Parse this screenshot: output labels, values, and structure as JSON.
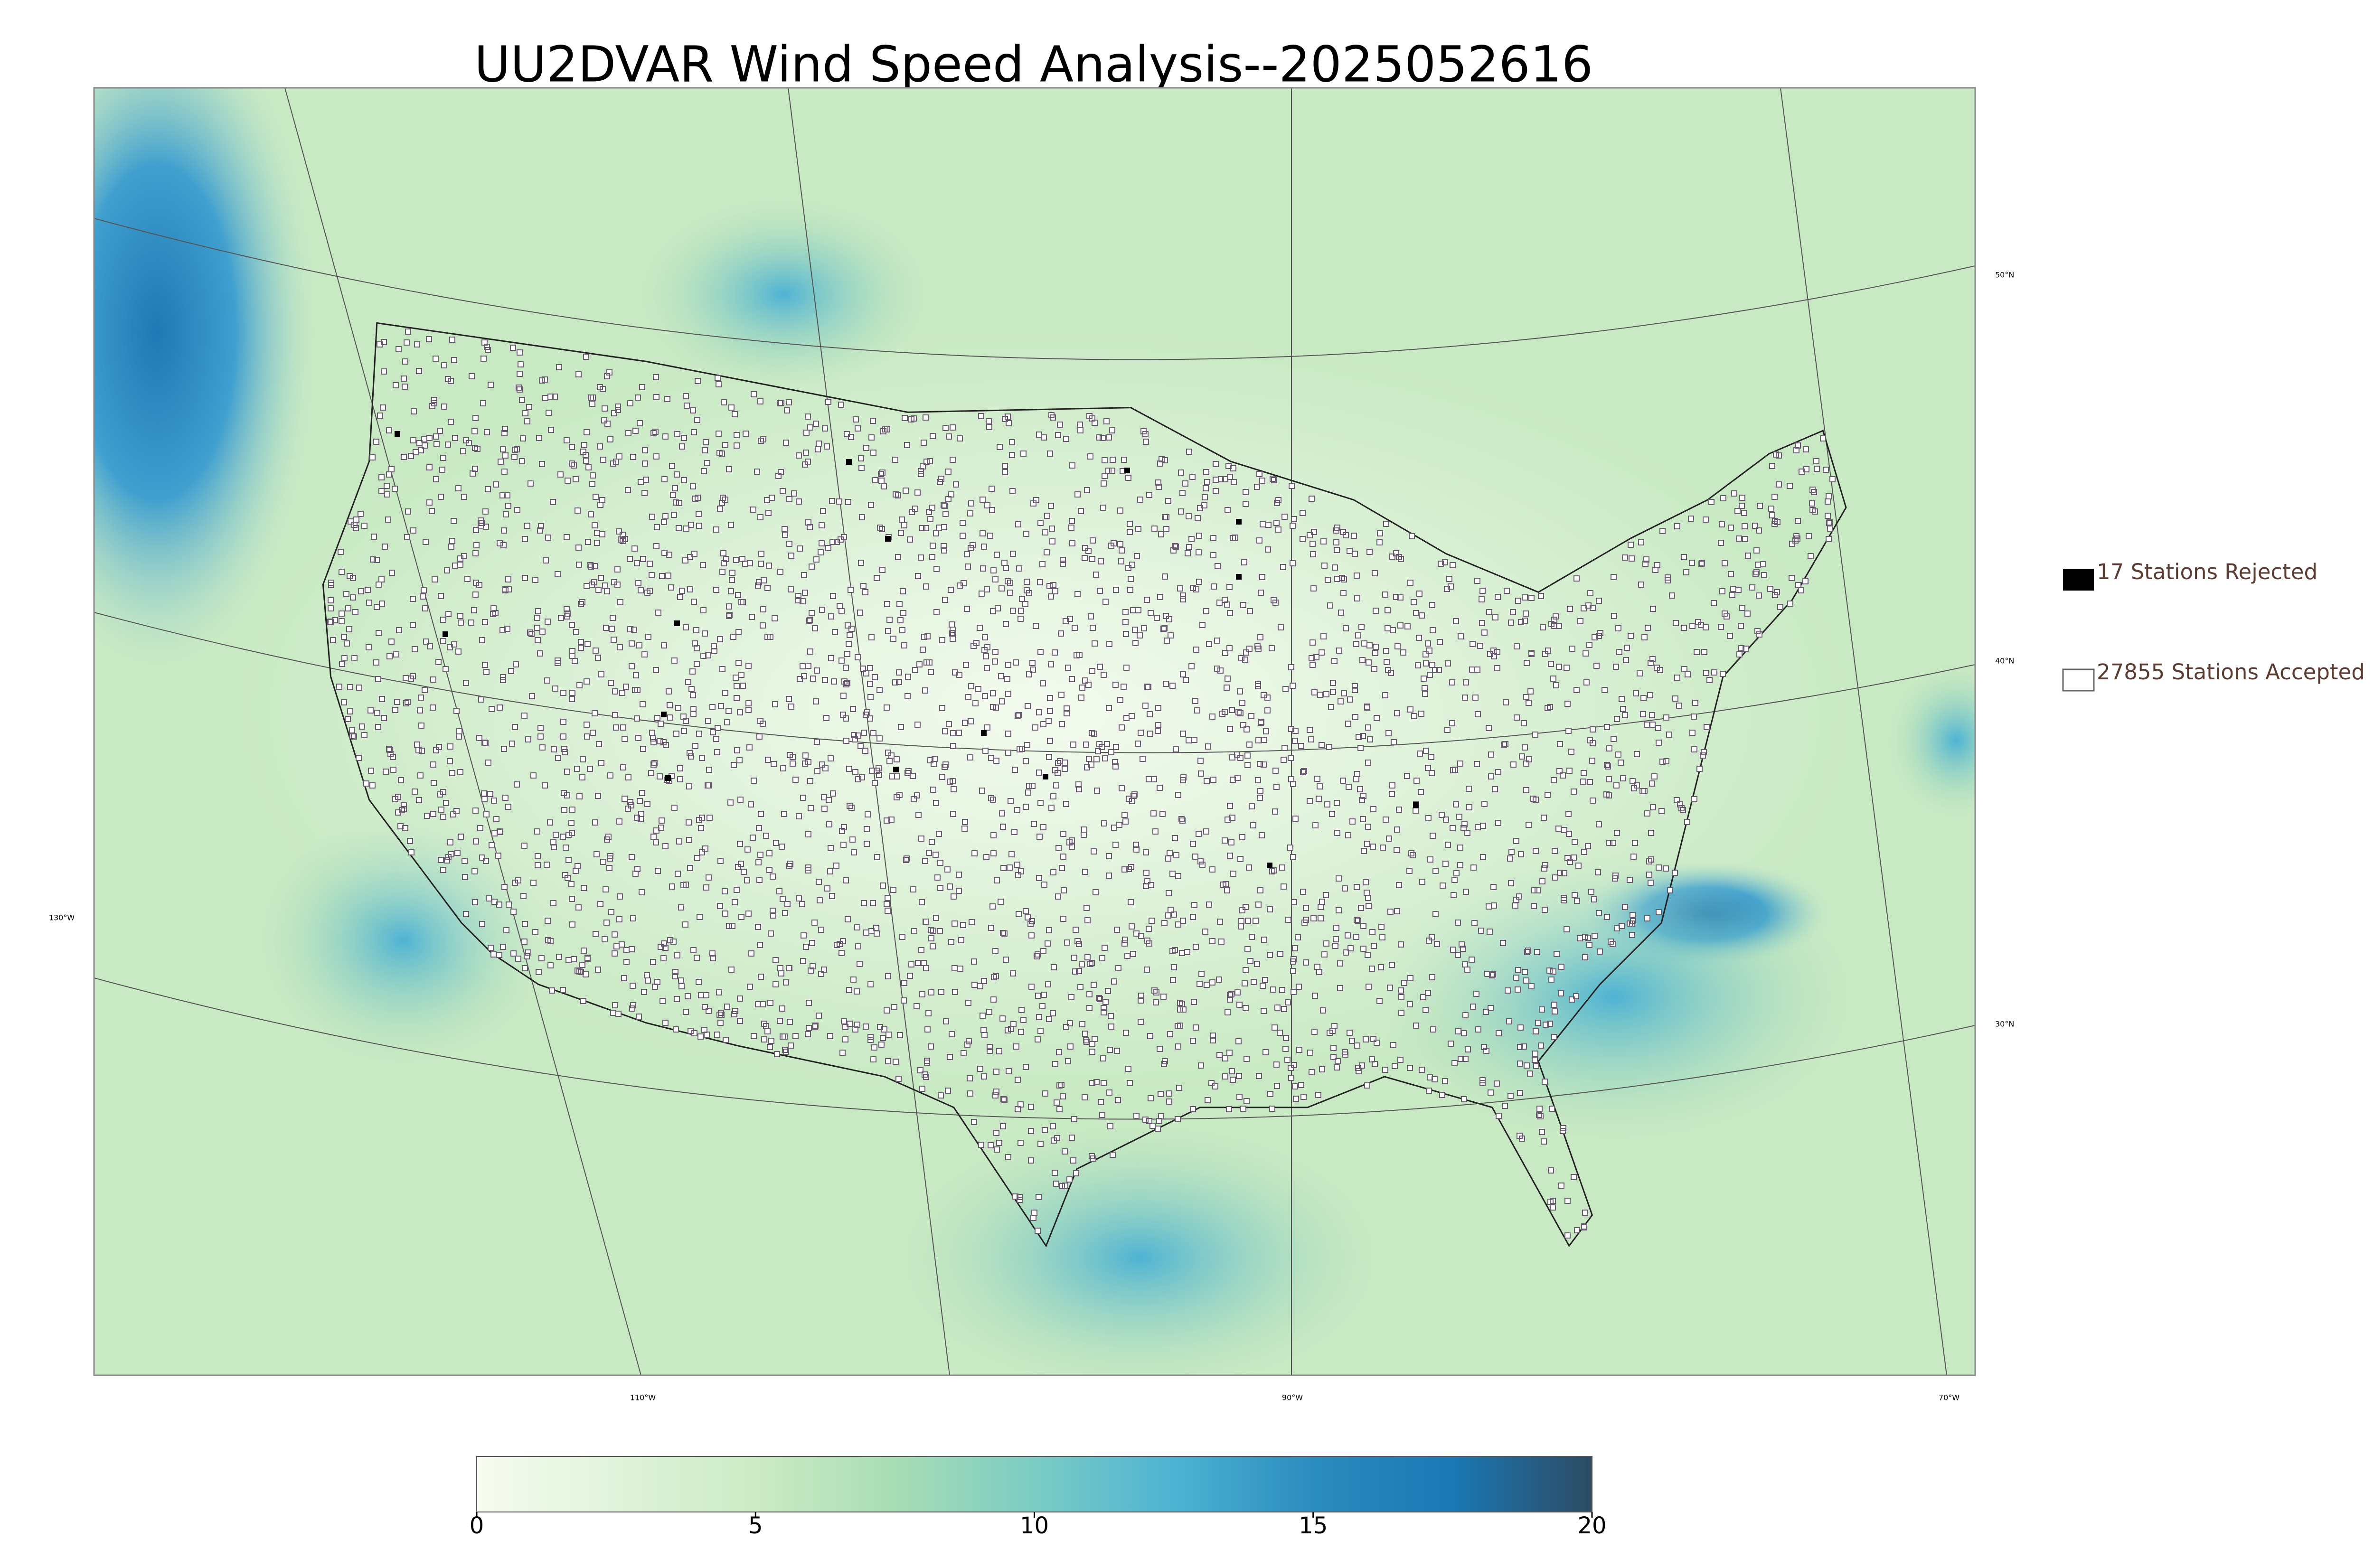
{
  "header": {
    "title": "UU2DVAR Wind Speed Analysis--2025052616"
  },
  "legend": {
    "items": [
      {
        "label": "17 Stations Rejected",
        "style": "filled"
      },
      {
        "label": "27855 Stations Accepted",
        "style": "outline"
      }
    ]
  },
  "map": {
    "lat_labels": [
      "50°N",
      "40°N",
      "30°N"
    ],
    "lon_labels": [
      "130°W",
      "110°W",
      "90°W",
      "70°W"
    ]
  },
  "colorbar": {
    "lim": [
      0,
      20
    ],
    "ticks": [
      0,
      5,
      10,
      15,
      20
    ],
    "colors": [
      "#f7fcf0",
      "#e0f3db",
      "#ccebc5",
      "#a8ddb5",
      "#7bccc4",
      "#4eb3d3",
      "#2b8cbe",
      "#1a78b4",
      "#2d4b63"
    ]
  }
}
